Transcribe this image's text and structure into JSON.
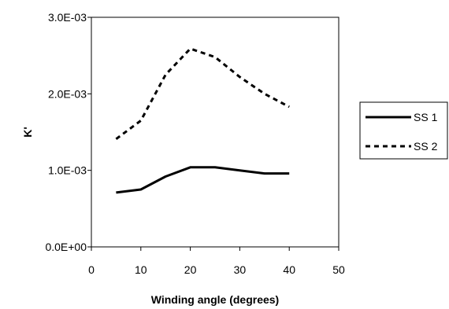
{
  "chart_data": {
    "type": "line",
    "title": "",
    "xlabel": "Winding angle (degrees)",
    "ylabel": "K'",
    "xlim": [
      0,
      50
    ],
    "ylim": [
      0,
      0.003
    ],
    "x_ticks": [
      0,
      10,
      20,
      30,
      40,
      50
    ],
    "x_tick_labels": [
      "0",
      "10",
      "20",
      "30",
      "40",
      "50"
    ],
    "y_ticks": [
      0,
      0.001,
      0.002,
      0.003
    ],
    "y_tick_labels": [
      "0.0E+00",
      "1.0E-03",
      "2.0E-03",
      "3.0E-03"
    ],
    "grid": false,
    "legend_position": "right",
    "series": [
      {
        "name": "SS 1",
        "style": "solid",
        "color": "#000000",
        "x": [
          5,
          10,
          15,
          20,
          25,
          30,
          35,
          40
        ],
        "values": [
          0.00071,
          0.00075,
          0.00092,
          0.00104,
          0.00104,
          0.001,
          0.00096,
          0.00096
        ]
      },
      {
        "name": "SS 2",
        "style": "dashed",
        "color": "#000000",
        "x": [
          5,
          10,
          15,
          20,
          25,
          30,
          35,
          40
        ],
        "values": [
          0.00141,
          0.00165,
          0.00225,
          0.00259,
          0.00248,
          0.00222,
          0.002,
          0.00183
        ]
      }
    ]
  }
}
